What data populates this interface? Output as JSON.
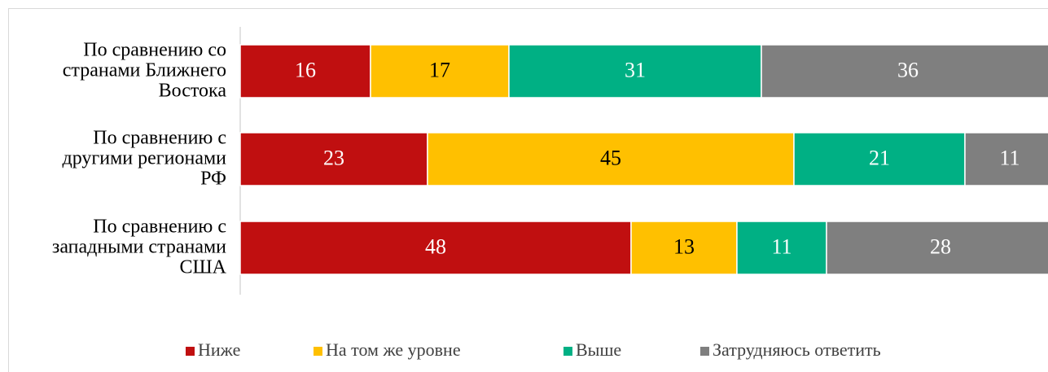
{
  "chart_data": {
    "type": "stacked_bar_horizontal",
    "categories": [
      "По сравнению со\nстранами Ближнего\nВостока",
      "По сравнению с\nдругими регионами\nРФ",
      "По сравнению с\nзападными странами\nСША"
    ],
    "series": [
      {
        "name": "Ниже",
        "color": "#c00f10",
        "text_color": "#ffffff",
        "values": [
          16,
          23,
          48
        ]
      },
      {
        "name": "На том же уровне",
        "color": "#ffc000",
        "text_color": "#000000",
        "values": [
          17,
          45,
          13
        ]
      },
      {
        "name": "Выше",
        "color": "#00b084",
        "text_color": "#ffffff",
        "values": [
          31,
          21,
          11
        ]
      },
      {
        "name": "Затрудняюсь ответить",
        "color": "#7f7f7f",
        "text_color": "#ffffff",
        "values": [
          36,
          11,
          28
        ]
      }
    ],
    "xlim": [
      0,
      100
    ],
    "legend": "bottom"
  }
}
